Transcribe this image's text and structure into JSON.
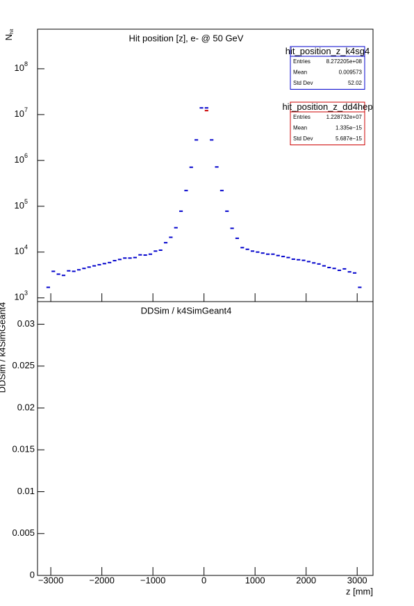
{
  "chart_data": [
    {
      "type": "histogram-markers",
      "title": "Hit position [z],  e- @ 50 GeV",
      "y_label": "N",
      "y_label_sub": "hit",
      "log_y": true,
      "xlim": [
        -3260,
        3310
      ],
      "ylim": [
        830,
        730000000
      ],
      "yticks": [
        {
          "value": 1000,
          "label": "10",
          "exponent": "3"
        },
        {
          "value": 10000,
          "label": "10",
          "exponent": "4"
        },
        {
          "value": 100000,
          "label": "10",
          "exponent": "5"
        },
        {
          "value": 1000000,
          "label": "10",
          "exponent": "6"
        },
        {
          "value": 10000000,
          "label": "10",
          "exponent": "7"
        },
        {
          "value": 100000000,
          "label": "10",
          "exponent": "8"
        }
      ],
      "bin_width": 100,
      "series": [
        {
          "name": "hit_position_z_k4sg4",
          "color": "#0000cc",
          "x": [
            -3050,
            -2950,
            -2850,
            -2750,
            -2650,
            -2550,
            -2450,
            -2350,
            -2250,
            -2150,
            -2050,
            -1950,
            -1850,
            -1750,
            -1650,
            -1550,
            -1450,
            -1350,
            -1250,
            -1150,
            -1050,
            -950,
            -850,
            -750,
            -650,
            -550,
            -450,
            -350,
            -250,
            -150,
            -50,
            50,
            150,
            250,
            350,
            450,
            550,
            650,
            750,
            850,
            950,
            1050,
            1150,
            1250,
            1350,
            1450,
            1550,
            1650,
            1750,
            1850,
            1950,
            2050,
            2150,
            2250,
            2350,
            2450,
            2550,
            2650,
            2750,
            2850,
            2950,
            3050
          ],
          "values": [
            1700,
            3800,
            3300,
            3100,
            3900,
            3800,
            4100,
            4400,
            4700,
            5000,
            5300,
            5600,
            5900,
            6500,
            6900,
            7400,
            7400,
            7600,
            8700,
            8600,
            9000,
            10500,
            11000,
            16000,
            21000,
            34000,
            78000,
            220000,
            710000,
            2800000,
            14000000,
            14000000,
            2800000,
            720000,
            220000,
            78000,
            33000,
            20000,
            12500,
            11500,
            10500,
            10000,
            9500,
            9000,
            9000,
            8400,
            8000,
            7600,
            7000,
            6800,
            6600,
            6200,
            5800,
            5500,
            5000,
            4600,
            4400,
            4000,
            4300,
            3700,
            3500,
            1700
          ],
          "stats": [
            {
              "label": "Entries",
              "value": "8.272205e+08"
            },
            {
              "label": "Mean",
              "value": "0.009573"
            },
            {
              "label": "Std Dev",
              "value": "52.02"
            }
          ]
        },
        {
          "name": "hit_position_z_dd4hep",
          "color": "#cc0000",
          "x": [
            50
          ],
          "values": [
            12200000
          ],
          "stats": [
            {
              "label": "Entries",
              "value": "1.228732e+07"
            },
            {
              "label": "Mean",
              "value": "1.335e−15"
            },
            {
              "label": "Std Dev",
              "value": "5.687e−15"
            }
          ]
        }
      ]
    },
    {
      "type": "ratio",
      "title": "DDSim / k4SimGeant4",
      "y_label": "DDSim / k4SimGeant4",
      "x_label": "z [mm]",
      "xlim": [
        -3260,
        3310
      ],
      "ylim": [
        0,
        0.0327
      ],
      "xticks": [
        {
          "value": -3000,
          "label": "−3000"
        },
        {
          "value": -2000,
          "label": "−2000"
        },
        {
          "value": -1000,
          "label": "−1000"
        },
        0,
        1000,
        2000,
        3000
      ],
      "yticks": [
        0,
        0.005,
        0.01,
        0.015,
        0.02,
        0.025,
        0.03
      ]
    }
  ]
}
